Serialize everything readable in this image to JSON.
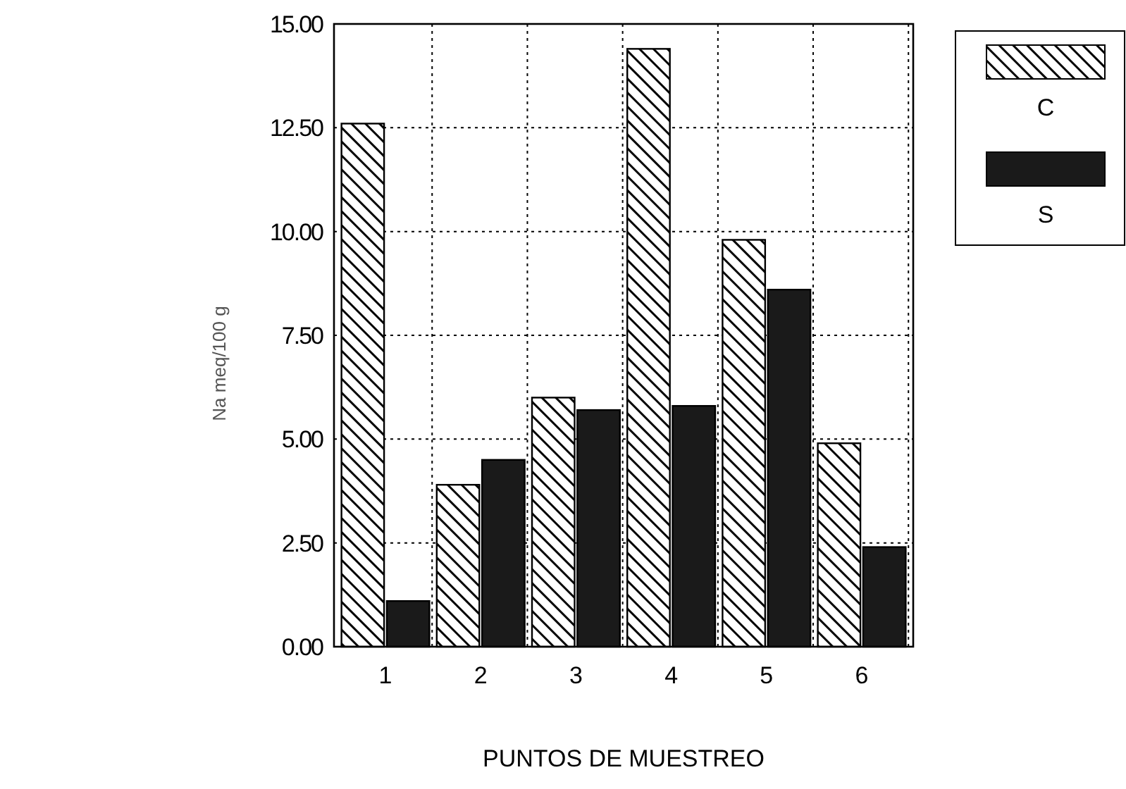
{
  "chart_data": {
    "type": "bar",
    "xlabel": "PUNTOS DE MUESTREO",
    "ylabel": "Na meq/100 g",
    "categories": [
      "1",
      "2",
      "3",
      "4",
      "5",
      "6"
    ],
    "series": [
      {
        "name": "C",
        "color": "#000000",
        "values": [
          12.6,
          3.9,
          6.0,
          14.4,
          9.8,
          4.9
        ]
      },
      {
        "name": "S",
        "color": "#1a1a1a",
        "values": [
          1.1,
          4.5,
          5.7,
          5.8,
          8.6,
          2.4
        ]
      }
    ],
    "ylim": [
      0,
      15
    ],
    "yticks": [
      {
        "value": 0,
        "label": "0.00"
      },
      {
        "value": 2.5,
        "label": "2.50"
      },
      {
        "value": 5,
        "label": "5.00"
      },
      {
        "value": 7.5,
        "label": "7.50"
      },
      {
        "value": 10,
        "label": "10.00"
      },
      {
        "value": 12.5,
        "label": "12.50"
      },
      {
        "value": 15,
        "label": "15.00"
      }
    ],
    "grid": true,
    "legend": "top right"
  }
}
